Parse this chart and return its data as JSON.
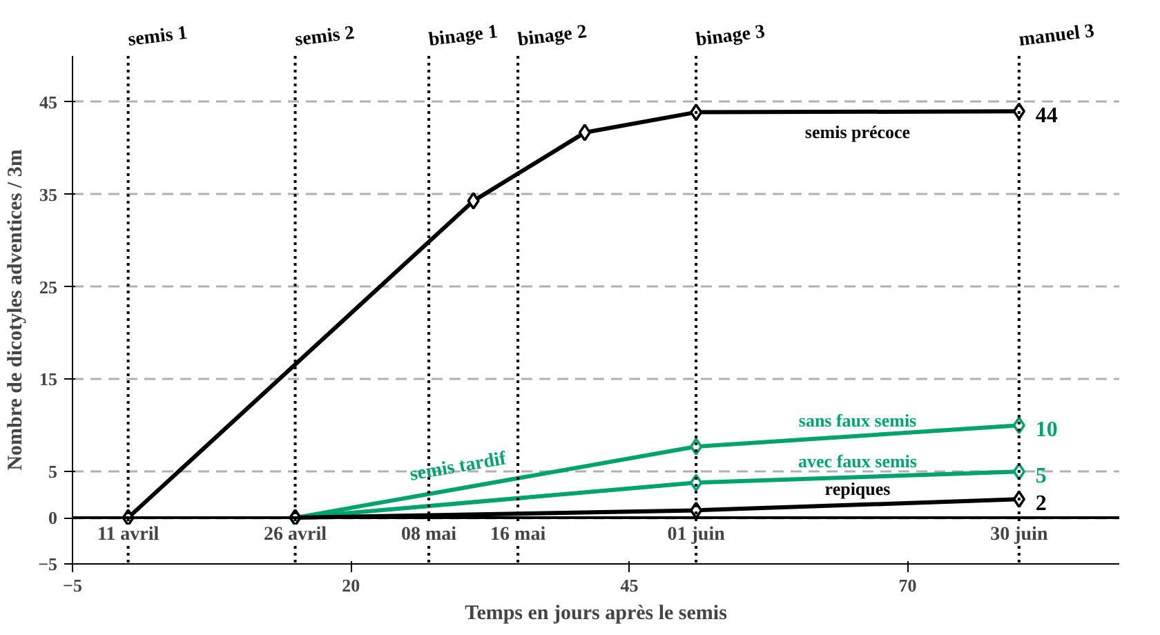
{
  "chart_data": {
    "type": "line",
    "xlabel": "Temps en jours après le semis",
    "ylabel": "Nombre de dicotyles adventices / 3m",
    "xlim": [
      -5,
      89
    ],
    "ylim": [
      -5,
      50
    ],
    "xticks": [
      -5,
      20,
      45,
      70
    ],
    "yticks": [
      -5,
      0,
      5,
      15,
      25,
      35,
      45
    ],
    "grid": "y",
    "marker": "diamond",
    "line_style": "solid",
    "series": [
      {
        "name": "semis précoce",
        "color": "#000000",
        "x": [
          0,
          31,
          41,
          51,
          80
        ],
        "values": [
          0,
          34.3,
          41.7,
          43.9,
          44
        ],
        "value_labels": [
          null,
          null,
          null,
          null,
          "44"
        ]
      },
      {
        "name": "sans faux semis",
        "color": "#00a36c",
        "x": [
          15,
          51,
          80
        ],
        "values": [
          0,
          7.7,
          10
        ],
        "value_labels": [
          null,
          null,
          "10"
        ]
      },
      {
        "name": "avec faux semis",
        "color": "#00a36c",
        "x": [
          15,
          51,
          80
        ],
        "values": [
          0,
          3.8,
          5
        ],
        "value_labels": [
          null,
          null,
          "5"
        ]
      },
      {
        "name": "repiques",
        "color": "#000000",
        "x": [
          15,
          51,
          80
        ],
        "values": [
          0,
          0.8,
          2
        ],
        "value_labels": [
          null,
          null,
          "2"
        ]
      }
    ],
    "ref_lines": [
      {
        "axis": "y",
        "value": 0,
        "color": "#000000",
        "line_style": "solid"
      },
      {
        "axis": "x",
        "value": 0,
        "label": "semis 1",
        "line_style": "dotted"
      },
      {
        "axis": "x",
        "value": 15,
        "label": "semis 2",
        "line_style": "dotted"
      },
      {
        "axis": "x",
        "value": 27,
        "label": "binage 1",
        "line_style": "dotted"
      },
      {
        "axis": "x",
        "value": 35,
        "label": "binage 2",
        "line_style": "dotted"
      },
      {
        "axis": "x",
        "value": 51,
        "label": "binage 3",
        "line_style": "dotted"
      },
      {
        "axis": "x",
        "value": 80,
        "label": "manuel 3",
        "line_style": "dotted"
      }
    ],
    "annotations": [
      {
        "text": "11 avril",
        "x": 0,
        "y": 0
      },
      {
        "text": "26 avril",
        "x": 15,
        "y": 0
      },
      {
        "text": "08 mai",
        "x": 27,
        "y": 0
      },
      {
        "text": "16 mai",
        "x": 35,
        "y": 0
      },
      {
        "text": "01 juin",
        "x": 51,
        "y": 0
      },
      {
        "text": "30 juin",
        "x": 80,
        "y": 0
      },
      "semis tardif"
    ]
  }
}
